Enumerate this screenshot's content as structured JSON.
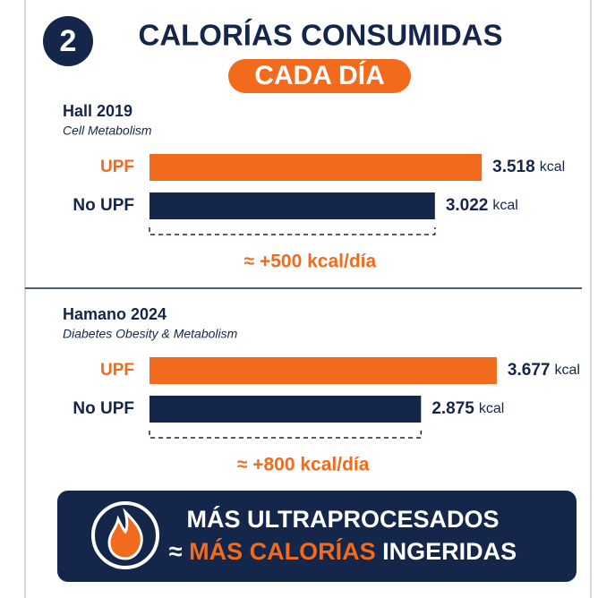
{
  "badge": "2",
  "title": "CALORÍAS CONSUMIDAS",
  "subtitle": "CADA DÍA",
  "chart_data": [
    {
      "type": "bar",
      "orientation": "horizontal",
      "title": "Hall 2019",
      "subtitle": "Cell Metabolism",
      "categories": [
        "UPF",
        "No UPF"
      ],
      "values": [
        3518,
        3022
      ],
      "value_labels": [
        "3.518",
        "3.022"
      ],
      "unit": "kcal",
      "colors": [
        "#f26a1b",
        "#14264a"
      ],
      "annotation": "≈ +500 kcal/día"
    },
    {
      "type": "bar",
      "orientation": "horizontal",
      "title": "Hamano 2024",
      "subtitle": "Diabetes Obesity & Metabolism",
      "categories": [
        "UPF",
        "No UPF"
      ],
      "values": [
        3677,
        2875
      ],
      "value_labels": [
        "3.677",
        "2.875"
      ],
      "unit": "kcal",
      "colors": [
        "#f26a1b",
        "#14264a"
      ],
      "annotation": "≈ +800 kcal/día"
    }
  ],
  "footer": {
    "line1": "MÁS ULTRAPROCESADOS",
    "prefix": "≈",
    "highlight": "MÁS CALORÍAS",
    "suffix": "INGERIDAS"
  }
}
